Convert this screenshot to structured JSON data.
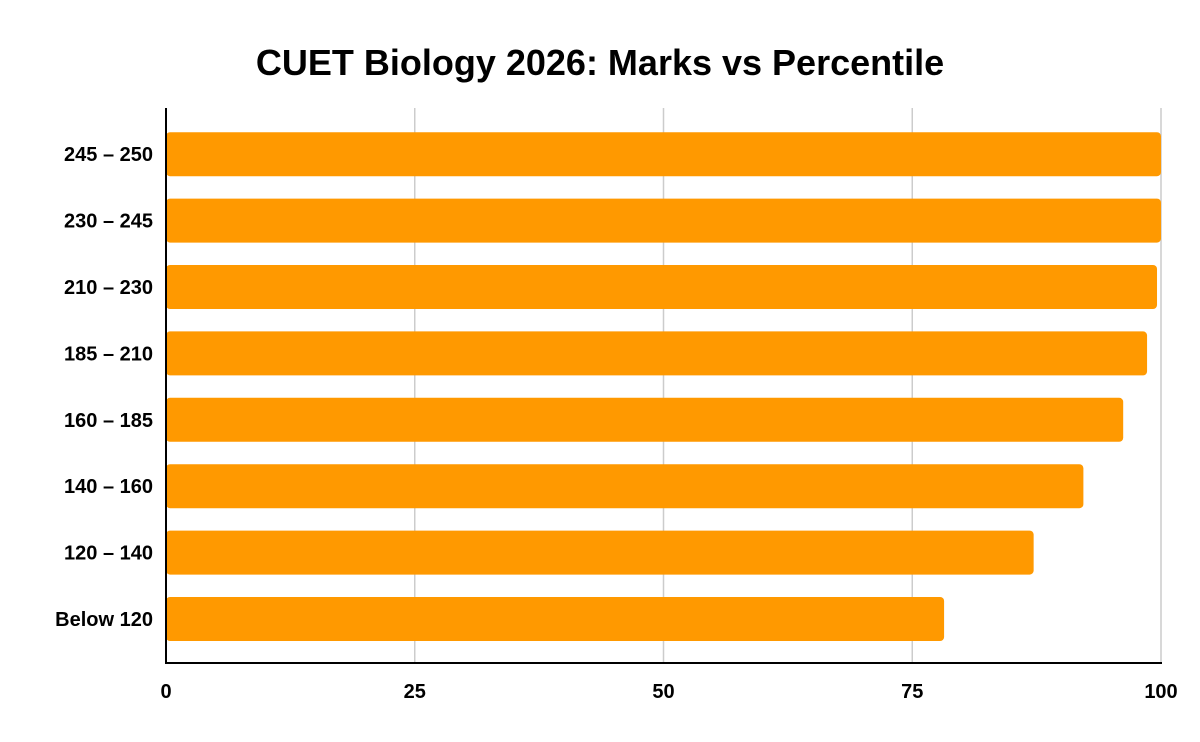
{
  "chart_data": {
    "type": "bar",
    "orientation": "horizontal",
    "title": "CUET Biology 2026: Marks vs Percentile",
    "xlabel": "",
    "ylabel": "",
    "categories": [
      "245 – 250",
      "230 – 245",
      "210 – 230",
      "185 – 210",
      "160 – 185",
      "140 – 160",
      "120 – 140",
      "Below 120"
    ],
    "values": [
      100,
      100,
      99.6,
      98.6,
      96.2,
      92.2,
      87.2,
      78.2
    ],
    "xlim": [
      0,
      100
    ],
    "xticks": [
      0,
      25,
      50,
      75,
      100
    ],
    "grid": true,
    "legend": "none",
    "bar_color": "#ff9900",
    "grid_color": "#cccccc",
    "axis_color": "#000000"
  }
}
